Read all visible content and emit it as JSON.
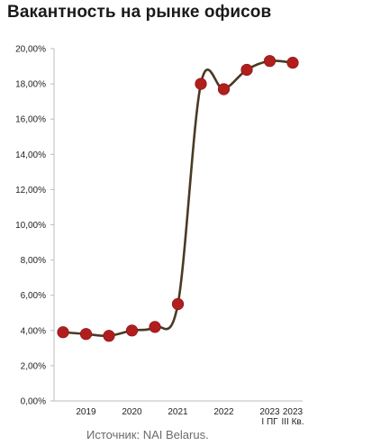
{
  "title": "Вакантность на рынке офисов",
  "source": "Источник: NAI Belarus.",
  "chart_data": {
    "type": "line",
    "title": "Вакантность на рынке офисов",
    "xlabel": "",
    "ylabel": "",
    "ylim": [
      0,
      20
    ],
    "y_ticks": [
      "0,00%",
      "2,00%",
      "4,00%",
      "6,00%",
      "8,00%",
      "10,00%",
      "12,00%",
      "14,00%",
      "16,00%",
      "18,00%",
      "20,00%"
    ],
    "x_ticks": [
      {
        "label": "2019",
        "index": 1
      },
      {
        "label": "2020",
        "index": 3
      },
      {
        "label": "2021",
        "index": 5
      },
      {
        "label": "2022",
        "index": 7
      },
      {
        "label": "2023",
        "index": 9,
        "sub": "I ПГ"
      },
      {
        "label": "2023",
        "index": 10,
        "sub": "III Кв."
      }
    ],
    "grid": false,
    "series": [
      {
        "values": [
          3.9,
          3.8,
          3.7,
          4.0,
          4.2,
          5.5,
          18.0,
          17.7,
          18.8,
          19.3,
          19.2
        ]
      }
    ],
    "line_color": "#4a3a24",
    "marker_color": "#b01e1e"
  }
}
